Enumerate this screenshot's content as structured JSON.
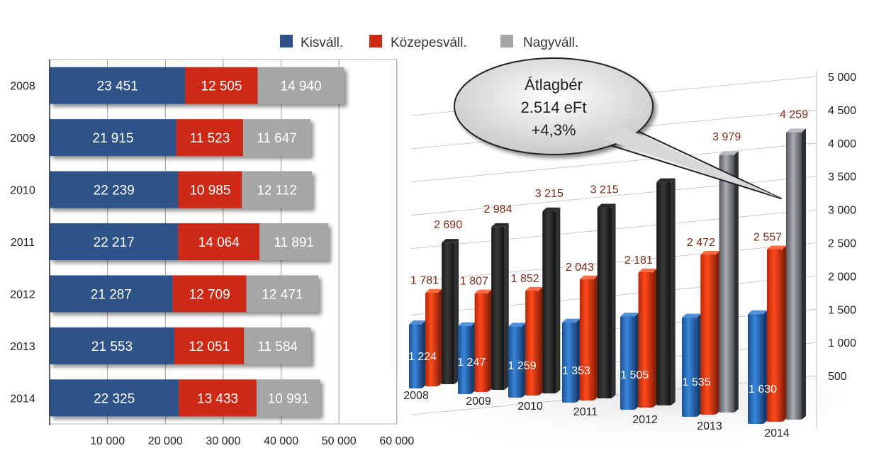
{
  "legend": {
    "items": [
      {
        "label": "Kisváll.",
        "color": "#2E5288"
      },
      {
        "label": "Közepesváll.",
        "color": "#CC2A12"
      },
      {
        "label": "Nagyváll.",
        "color": "#A6A6A6"
      }
    ]
  },
  "callout": {
    "line1": "Átlagbér",
    "line2": "2.514 eFt",
    "line3": "+4,3%"
  },
  "chart_data": [
    {
      "type": "bar",
      "orientation": "horizontal",
      "stacked": true,
      "categories": [
        "2008",
        "2009",
        "2010",
        "2011",
        "2012",
        "2013",
        "2014"
      ],
      "series": [
        {
          "name": "Kisváll.",
          "color": "#2E5288",
          "values": [
            23451,
            21915,
            22239,
            22217,
            21287,
            21553,
            22325
          ],
          "labels": [
            "23 451",
            "21 915",
            "22 239",
            "22 217",
            "21 287",
            "21 553",
            "22 325"
          ]
        },
        {
          "name": "Közepesváll.",
          "color": "#CC2A12",
          "values": [
            12505,
            11523,
            10985,
            14064,
            12709,
            12051,
            13433
          ],
          "labels": [
            "12 505",
            "11 523",
            "10 985",
            "14 064",
            "12 709",
            "12 051",
            "13 433"
          ]
        },
        {
          "name": "Nagyváll.",
          "color": "#A6A6A6",
          "values": [
            14940,
            11647,
            12112,
            11891,
            12471,
            11584,
            10991
          ],
          "labels": [
            "14 940",
            "11 647",
            "12 112",
            "11 891",
            "12 471",
            "11 584",
            "10 991"
          ]
        }
      ],
      "xlim": [
        0,
        60000
      ],
      "xticks": [
        "10 000",
        "20 000",
        "30 000",
        "40 000",
        "50 000",
        "60 000"
      ],
      "xtick_values": [
        10000,
        20000,
        30000,
        40000,
        50000,
        60000
      ],
      "grid": true
    },
    {
      "type": "bar",
      "orientation": "vertical",
      "style": "3d",
      "categories": [
        "2008",
        "2009",
        "2010",
        "2011",
        "2012",
        "2013",
        "2014"
      ],
      "series": [
        {
          "name": "Kisváll.",
          "color": "#2B6FC0",
          "values": [
            1224,
            1247,
            1259,
            1353,
            1505,
            1535,
            1630
          ],
          "labels": [
            "1 224",
            "1 247",
            "1 259",
            "1 353",
            "1 505",
            "1 535",
            "1 630"
          ]
        },
        {
          "name": "Közepesváll.",
          "color": "#E0340F",
          "values": [
            1781,
            1807,
            1852,
            2043,
            2181,
            2472,
            2557
          ],
          "labels": [
            "1 781",
            "1 807",
            "1 852",
            "2 043",
            "2 181",
            "2 472",
            "2 557"
          ]
        },
        {
          "name": "Nagyváll.",
          "color": "#7A7D84",
          "values": [
            2690,
            2984,
            3215,
            3215,
            3600,
            3979,
            4259
          ],
          "labels": [
            "2 690",
            "2 984",
            "3 215",
            "3 215",
            "",
            "3 979",
            "4 259"
          ]
        }
      ],
      "ylim": [
        0,
        5000
      ],
      "yticks": [
        "500",
        "1 000",
        "1 500",
        "2 000",
        "2 500",
        "3 000",
        "3 500",
        "4 000",
        "4 500",
        "5 000"
      ],
      "ytick_values": [
        500,
        1000,
        1500,
        2000,
        2500,
        3000,
        3500,
        4000,
        4500,
        5000
      ],
      "grid": true
    }
  ]
}
